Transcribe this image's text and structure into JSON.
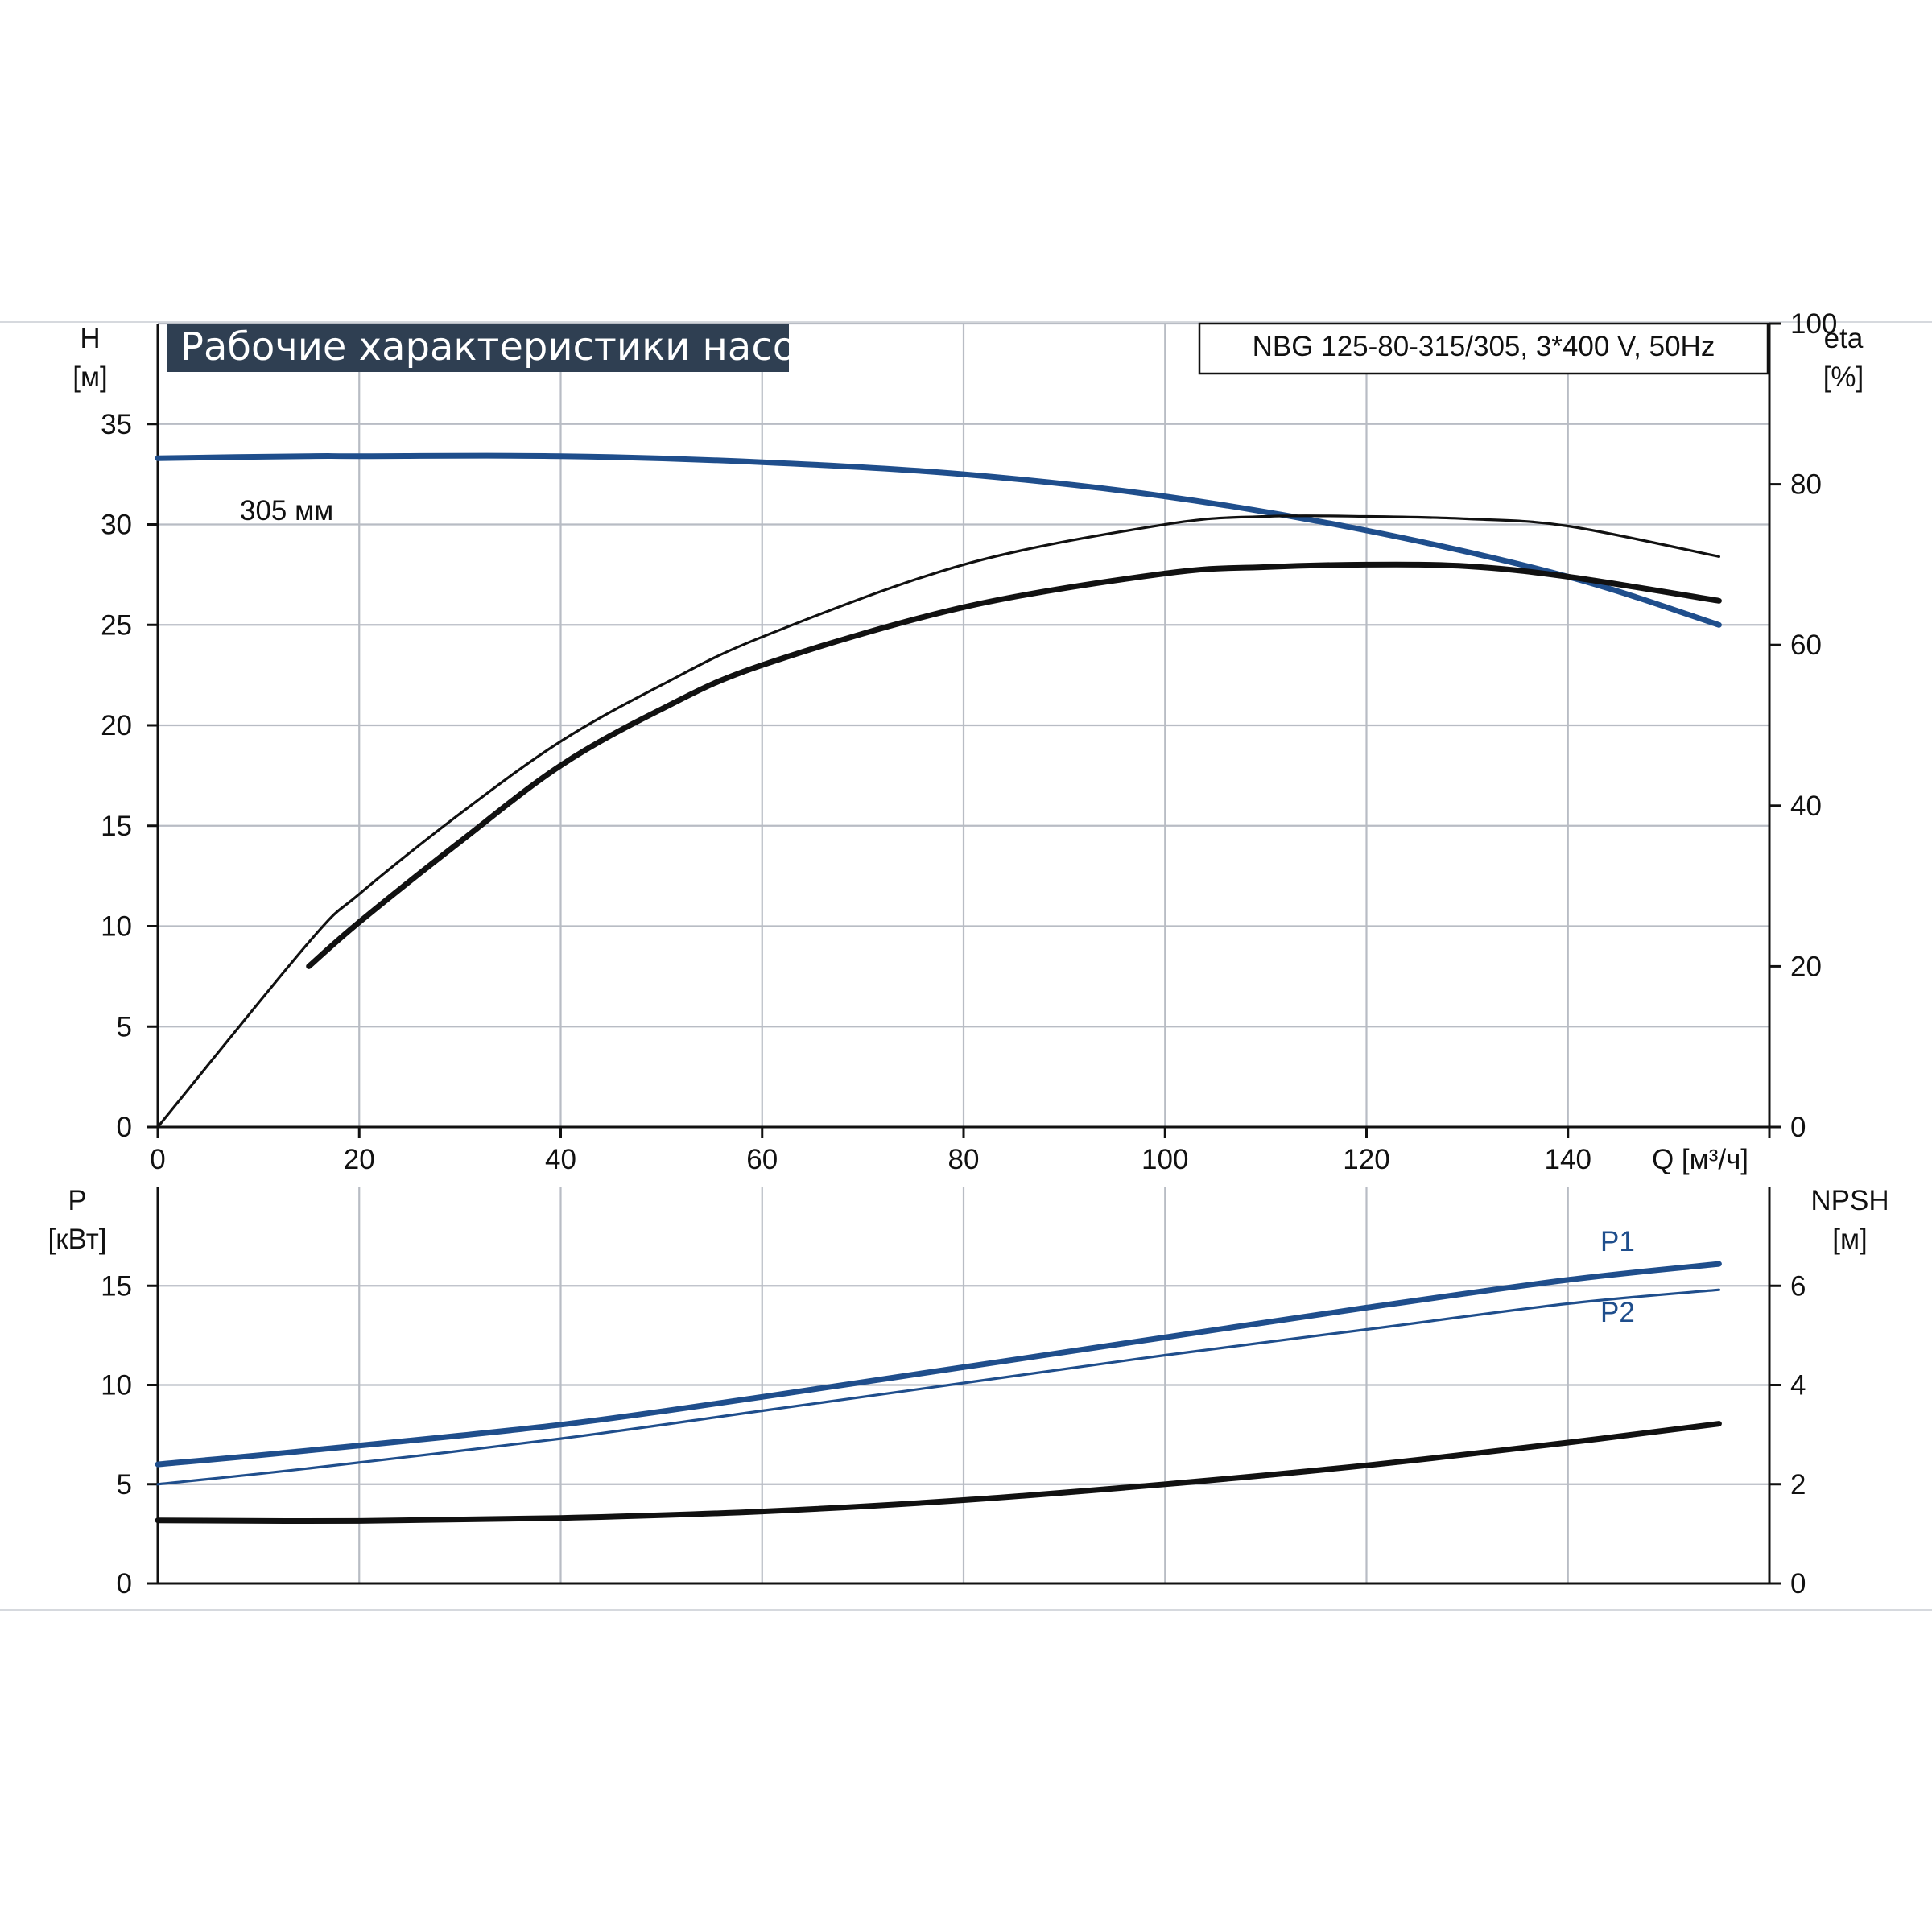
{
  "title": "Рабочие характеристики насоса",
  "model": "NBG 125-80-315/305, 3*400 V, 50Hz",
  "colors": {
    "blue": "#1f4e8c",
    "black": "#111111",
    "grid": "#b8bcc4",
    "title_bg": "#2f3f52"
  },
  "chart_data": [
    {
      "type": "line",
      "panel": "upper",
      "x_axis": {
        "label": "Q [м³/ч]",
        "range": [
          0,
          160
        ],
        "ticks": [
          "0",
          "20",
          "40",
          "60",
          "80",
          "100",
          "120",
          "140"
        ]
      },
      "y_left": {
        "label": [
          "H",
          "[м]"
        ],
        "range": [
          0,
          40
        ],
        "ticks": [
          "0",
          "5",
          "10",
          "15",
          "20",
          "25",
          "30",
          "35"
        ]
      },
      "y_right": {
        "label": [
          "eta",
          "[%]"
        ],
        "range": [
          0,
          100
        ],
        "ticks": [
          "0",
          "20",
          "40",
          "60",
          "80",
          "100"
        ]
      },
      "grid": true,
      "series": [
        {
          "name": "305 мм",
          "axis": "left",
          "color": "blue",
          "weight": "thick",
          "x": [
            0,
            15,
            20,
            40,
            60,
            80,
            100,
            120,
            140,
            155
          ],
          "y": [
            33.3,
            33.4,
            33.4,
            33.4,
            33.1,
            32.5,
            31.4,
            29.7,
            27.4,
            25.0
          ]
        },
        {
          "axis": "right",
          "color": "black",
          "weight": "thin",
          "x": [
            0,
            15,
            20,
            30,
            40,
            50,
            60,
            80,
            100,
            110,
            120,
            130,
            140,
            155
          ],
          "y": [
            0,
            23,
            29,
            39,
            48,
            55,
            61,
            70,
            75,
            76,
            76,
            75.7,
            74.8,
            71
          ]
        },
        {
          "axis": "right",
          "color": "black",
          "weight": "thick",
          "x": [
            15,
            20,
            30,
            40,
            50,
            60,
            80,
            100,
            110,
            120,
            130,
            140,
            155
          ],
          "y": [
            20,
            25.5,
            35.5,
            45,
            52,
            57.5,
            64.7,
            68.9,
            69.7,
            70,
            69.8,
            68.5,
            65.5
          ]
        }
      ]
    },
    {
      "type": "line",
      "panel": "lower",
      "x_axis": {
        "range": [
          0,
          160
        ]
      },
      "y_left": {
        "label": [
          "P",
          "[кВт]"
        ],
        "range": [
          0,
          20
        ],
        "ticks": [
          "0",
          "5",
          "10",
          "15"
        ]
      },
      "y_right": {
        "label": [
          "NPSH",
          "[м]"
        ],
        "range": [
          0,
          8
        ],
        "ticks": [
          "0",
          "2",
          "4",
          "6"
        ]
      },
      "grid": true,
      "series": [
        {
          "name": "P1",
          "axis": "left",
          "color": "blue",
          "weight": "thick",
          "x": [
            0,
            15,
            40,
            60,
            80,
            100,
            120,
            140,
            155
          ],
          "y": [
            6.0,
            6.7,
            8.0,
            9.4,
            10.9,
            12.4,
            13.9,
            15.3,
            16.1
          ]
        },
        {
          "name": "P2",
          "axis": "left",
          "color": "blue",
          "weight": "thin",
          "x": [
            0,
            15,
            40,
            60,
            80,
            100,
            120,
            140,
            155
          ],
          "y": [
            5.0,
            5.8,
            7.3,
            8.7,
            10.1,
            11.5,
            12.8,
            14.1,
            14.8
          ]
        },
        {
          "axis": "right",
          "color": "black",
          "weight": "thick",
          "x": [
            0,
            20,
            40,
            60,
            80,
            100,
            120,
            140,
            155
          ],
          "y": [
            1.27,
            1.26,
            1.32,
            1.45,
            1.68,
            2.0,
            2.38,
            2.84,
            3.22
          ]
        }
      ]
    }
  ]
}
